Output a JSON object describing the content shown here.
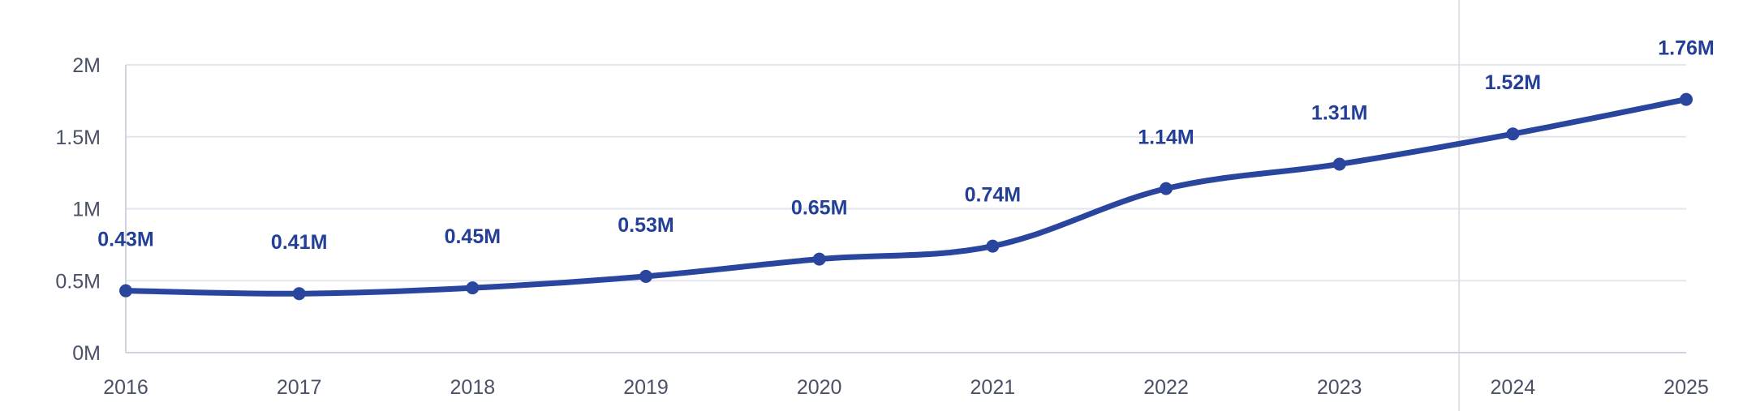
{
  "colors": {
    "series": "#2a459e",
    "label": "#233f96",
    "tick": "#4a5168",
    "grid": "#e3e6ee",
    "highlight_line": "#dfe2ea"
  },
  "chart_data": {
    "type": "line",
    "title": "",
    "xlabel": "",
    "ylabel": "",
    "categories": [
      "2016",
      "2017",
      "2018",
      "2019",
      "2020",
      "2021",
      "2022",
      "2023",
      "2024",
      "2025"
    ],
    "series": [
      {
        "values": [
          0.43,
          0.41,
          0.45,
          0.53,
          0.65,
          0.74,
          1.14,
          1.31,
          1.52,
          1.76
        ],
        "data_labels": [
          "0.43M",
          "0.41M",
          "0.45M",
          "0.53M",
          "0.65M",
          "0.74M",
          "1.14M",
          "1.31M",
          "1.52M",
          "1.76M"
        ]
      }
    ],
    "y_ticks": [
      0,
      0.5,
      1,
      1.5,
      2
    ],
    "y_tick_labels": [
      "0M",
      "0.5M",
      "1M",
      "1.5M",
      "2M"
    ],
    "ylim": [
      0,
      2
    ],
    "grid": true,
    "legend": "none",
    "highlight_between": [
      "2023",
      "2024"
    ]
  }
}
